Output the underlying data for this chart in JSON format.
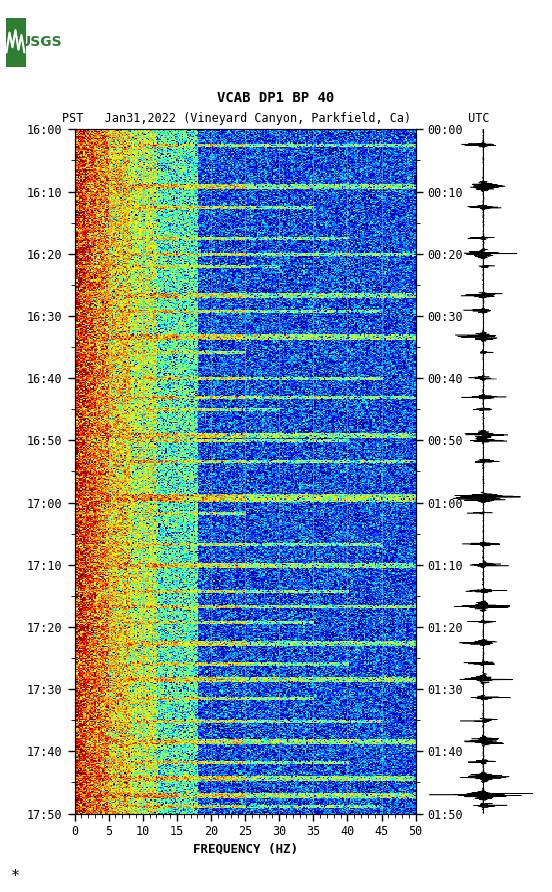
{
  "title_line1": "VCAB DP1 BP 40",
  "title_line2_pst": "PST",
  "title_line2_date": "Jan31,2022 (Vineyard Canyon, Parkfield, Ca)",
  "title_line2_utc": "UTC",
  "xlabel": "FREQUENCY (HZ)",
  "freq_min": 0,
  "freq_max": 50,
  "pst_ticks": [
    "16:00",
    "16:10",
    "16:20",
    "16:30",
    "16:40",
    "16:50",
    "17:00",
    "17:10",
    "17:20",
    "17:30",
    "17:40",
    "17:50"
  ],
  "utc_ticks": [
    "00:00",
    "00:10",
    "00:20",
    "00:30",
    "00:40",
    "00:50",
    "01:00",
    "01:10",
    "01:20",
    "01:30",
    "01:40",
    "01:50"
  ],
  "freq_ticks": [
    0,
    5,
    10,
    15,
    20,
    25,
    30,
    35,
    40,
    45,
    50
  ],
  "bg_color": "white",
  "font_family": "monospace",
  "usgs_green": "#2e7d32",
  "grid_color": "#aaaaaa",
  "grid_alpha": 0.6,
  "n_time": 660,
  "n_freq": 250
}
